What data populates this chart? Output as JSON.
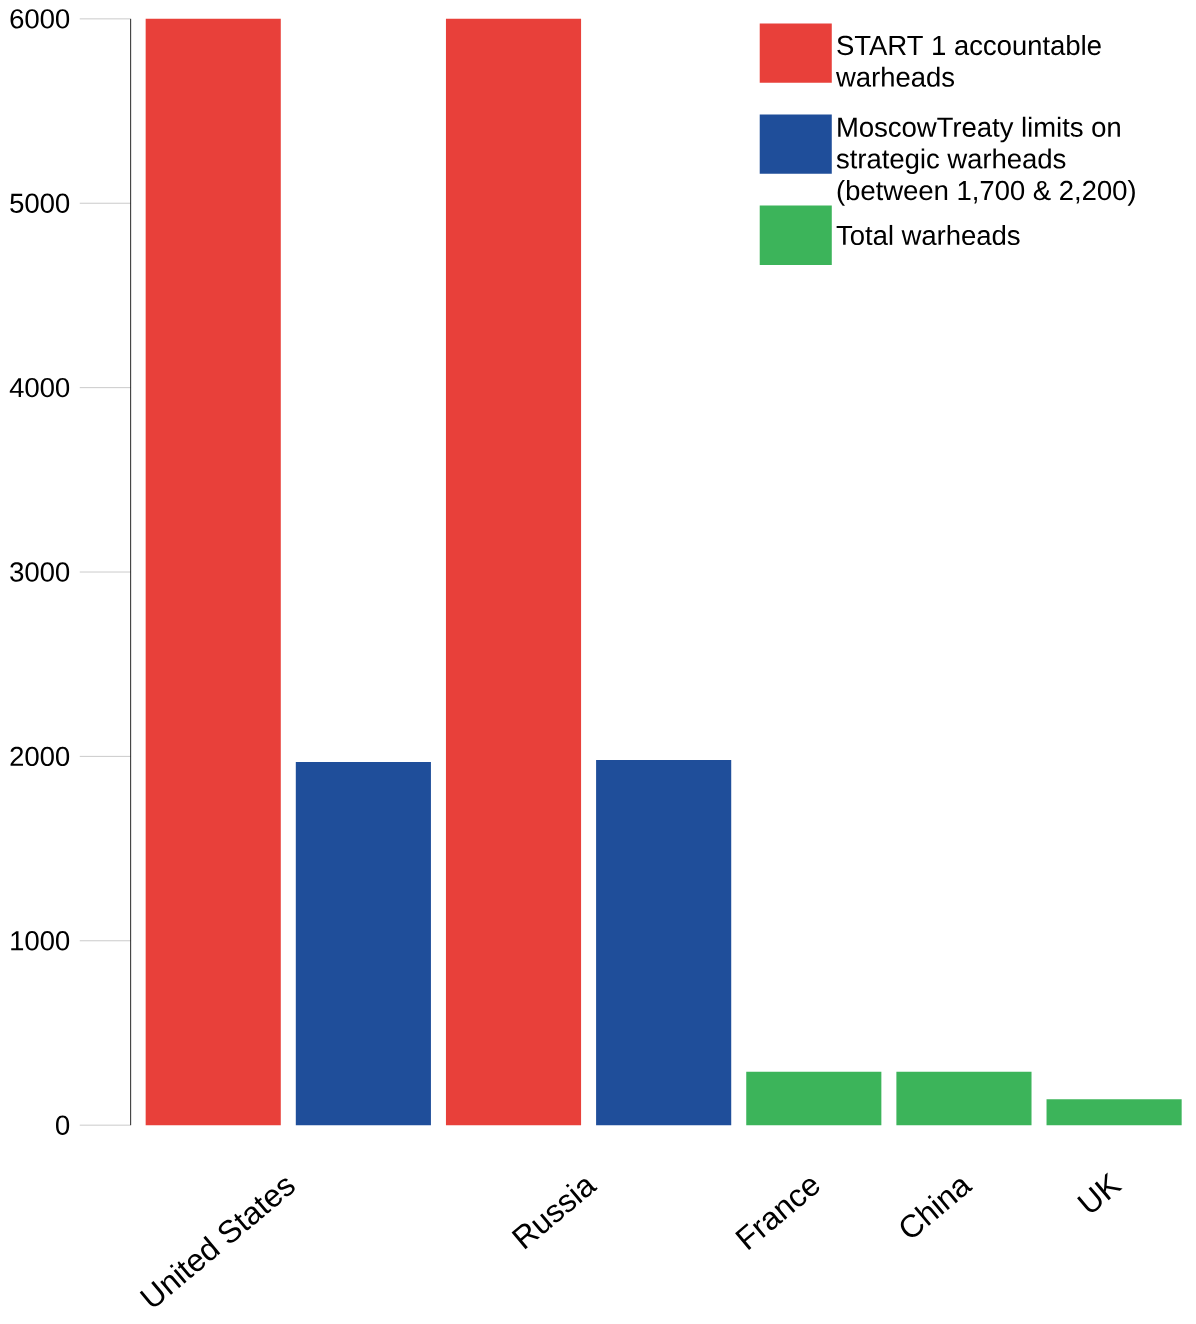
{
  "chart_data": {
    "type": "bar",
    "categories": [
      "United States",
      "Russia",
      "France",
      "China",
      "UK"
    ],
    "series": [
      {
        "name": "START 1 accountable warheads",
        "color": "#e8403a",
        "values": [
          6000,
          6000,
          null,
          null,
          null
        ]
      },
      {
        "name": "MoscowTreaty limits on strategic warheads (between 1,700 & 2,200)",
        "color": "#1f4e9a",
        "values": [
          1970,
          1980,
          null,
          null,
          null
        ]
      },
      {
        "name": "Total warheads",
        "color": "#3cb45a",
        "values": [
          null,
          null,
          290,
          290,
          140
        ]
      }
    ],
    "ylim": [
      0,
      6000
    ],
    "yticks": [
      0,
      1000,
      2000,
      3000,
      4000,
      5000,
      6000
    ],
    "grid": false,
    "legend": "top right"
  }
}
